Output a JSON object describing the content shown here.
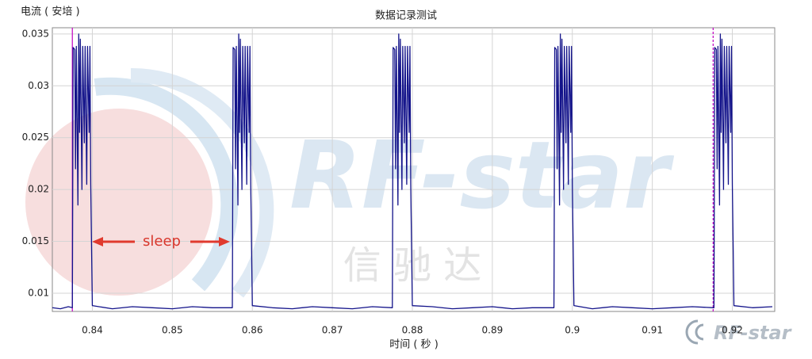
{
  "chart_data": {
    "type": "line",
    "title": "数据记录测试",
    "y_label": "电流 ( 安培 )",
    "x_label": "时间 ( 秒 )",
    "annotation": "sleep",
    "watermark": "RF-star",
    "watermark_cn": "信 驰 达",
    "logo": "RF-star",
    "xlim": [
      0.835,
      0.9253
    ],
    "ylim": [
      0.00824,
      0.0356
    ],
    "xticks": [
      0.84,
      0.85,
      0.86,
      0.87,
      0.88,
      0.89,
      0.9,
      0.91,
      0.92
    ],
    "yticks": [
      0.01,
      0.015,
      0.02,
      0.025,
      0.03,
      0.035
    ],
    "grid": true,
    "cursors": [
      0.8375,
      0.9176
    ],
    "cursor_color": "#c000c0",
    "series": [
      {
        "color": "#13138a",
        "x": [
          0.835,
          0.836,
          0.837,
          0.8375,
          0.83752,
          0.8376,
          0.8378,
          0.8379,
          0.838,
          0.8382,
          0.8383,
          0.8384,
          0.8385,
          0.8387,
          0.8388,
          0.839,
          0.8391,
          0.8393,
          0.8394,
          0.8396,
          0.8397,
          0.8398,
          0.84,
          0.8425,
          0.845,
          0.8475,
          0.85,
          0.8525,
          0.855,
          0.8575,
          0.85752,
          0.8576,
          0.8578,
          0.8579,
          0.858,
          0.8582,
          0.8583,
          0.8584,
          0.8585,
          0.8587,
          0.8588,
          0.859,
          0.8591,
          0.8593,
          0.8594,
          0.8596,
          0.8597,
          0.8598,
          0.86,
          0.8625,
          0.865,
          0.8675,
          0.87,
          0.8725,
          0.875,
          0.8775,
          0.87752,
          0.8776,
          0.8778,
          0.8779,
          0.878,
          0.8782,
          0.8783,
          0.8784,
          0.8785,
          0.8787,
          0.8788,
          0.879,
          0.8791,
          0.8793,
          0.8794,
          0.8796,
          0.8797,
          0.8798,
          0.88,
          0.8825,
          0.885,
          0.8875,
          0.89,
          0.8925,
          0.895,
          0.8977,
          0.89772,
          0.8978,
          0.898,
          0.8981,
          0.8982,
          0.8984,
          0.8985,
          0.8986,
          0.8987,
          0.8989,
          0.899,
          0.8992,
          0.8993,
          0.8995,
          0.8996,
          0.8998,
          0.8999,
          0.9,
          0.9002,
          0.9025,
          0.905,
          0.9075,
          0.91,
          0.9125,
          0.915,
          0.9177,
          0.91772,
          0.9178,
          0.918,
          0.9181,
          0.9182,
          0.9184,
          0.9185,
          0.9186,
          0.9187,
          0.9189,
          0.919,
          0.9192,
          0.9193,
          0.9195,
          0.9196,
          0.9198,
          0.9199,
          0.92,
          0.9202,
          0.9225,
          0.925
        ],
        "values": [
          0.0086,
          0.0085,
          0.0087,
          0.0086,
          0.0125,
          0.0337,
          0.0335,
          0.022,
          0.0338,
          0.0185,
          0.035,
          0.0255,
          0.0345,
          0.02,
          0.0338,
          0.0245,
          0.0338,
          0.0205,
          0.0338,
          0.0255,
          0.0338,
          0.0205,
          0.0088,
          0.0085,
          0.0087,
          0.0086,
          0.0085,
          0.0087,
          0.0086,
          0.0086,
          0.0125,
          0.0337,
          0.0335,
          0.022,
          0.0338,
          0.0185,
          0.035,
          0.0255,
          0.0345,
          0.02,
          0.0338,
          0.0245,
          0.0338,
          0.0205,
          0.0338,
          0.0255,
          0.0338,
          0.0205,
          0.0088,
          0.0086,
          0.0085,
          0.0087,
          0.0086,
          0.0085,
          0.0087,
          0.0086,
          0.0125,
          0.0337,
          0.0335,
          0.022,
          0.0338,
          0.0185,
          0.035,
          0.0255,
          0.0345,
          0.02,
          0.0338,
          0.0245,
          0.0338,
          0.0205,
          0.0338,
          0.0255,
          0.0338,
          0.0205,
          0.0088,
          0.0087,
          0.0085,
          0.0086,
          0.0087,
          0.0085,
          0.0086,
          0.0086,
          0.0125,
          0.0337,
          0.0335,
          0.022,
          0.0338,
          0.0185,
          0.035,
          0.0255,
          0.0345,
          0.02,
          0.0338,
          0.0245,
          0.0338,
          0.0205,
          0.0338,
          0.0255,
          0.0338,
          0.0205,
          0.0088,
          0.0085,
          0.0087,
          0.0086,
          0.0085,
          0.0086,
          0.0087,
          0.0086,
          0.0125,
          0.0337,
          0.0335,
          0.022,
          0.0338,
          0.0185,
          0.035,
          0.0255,
          0.0345,
          0.02,
          0.0338,
          0.0245,
          0.0338,
          0.0205,
          0.0338,
          0.0255,
          0.0338,
          0.0205,
          0.0088,
          0.0086,
          0.0087
        ]
      }
    ]
  }
}
